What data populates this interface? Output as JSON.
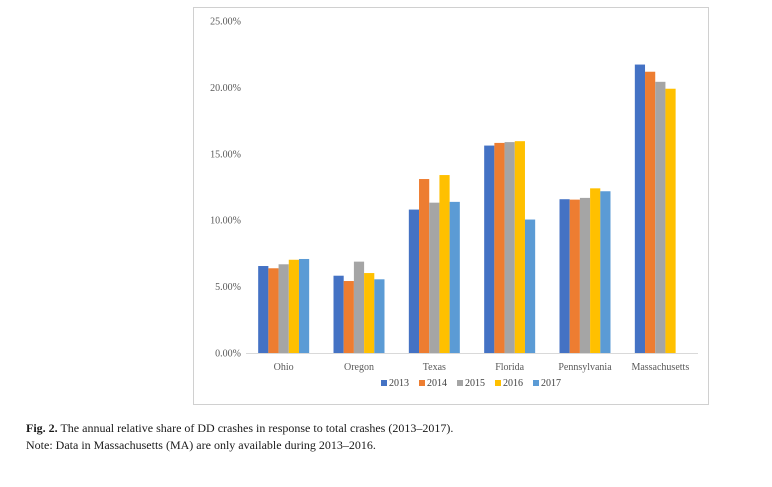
{
  "chart_data": {
    "type": "bar",
    "categories": [
      "Ohio",
      "Oregon",
      "Texas",
      "Florida",
      "Pennsylvania",
      "Massachusetts"
    ],
    "series": [
      {
        "name": "2013",
        "color": "#4472C4",
        "values": [
          6.55,
          5.82,
          10.8,
          15.62,
          11.58,
          21.72
        ]
      },
      {
        "name": "2014",
        "color": "#ED7D31",
        "values": [
          6.38,
          5.42,
          13.1,
          15.82,
          11.55,
          21.18
        ]
      },
      {
        "name": "2015",
        "color": "#A5A5A5",
        "values": [
          6.68,
          6.88,
          11.32,
          15.88,
          11.68,
          20.42
        ]
      },
      {
        "name": "2016",
        "color": "#FFC000",
        "values": [
          7.02,
          6.02,
          13.4,
          15.95,
          12.4,
          19.9
        ]
      },
      {
        "name": "2017",
        "color": "#5B9BD5",
        "values": [
          7.08,
          5.55,
          11.38,
          10.05,
          12.18,
          null
        ]
      }
    ],
    "ylim": [
      0,
      25
    ],
    "yticks": [
      0,
      5,
      10,
      15,
      20,
      25
    ],
    "ytick_labels": [
      "0.00%",
      "5.00%",
      "10.00%",
      "15.00%",
      "20.00%",
      "25.00%"
    ],
    "grid": false,
    "legend_position": "bottom"
  },
  "caption": {
    "label": "Fig. 2.",
    "text": " The annual relative share of DD crashes in response to total crashes (2013–2017).",
    "note": "Note: Data in Massachusetts (MA) are only available during 2013–2016."
  }
}
